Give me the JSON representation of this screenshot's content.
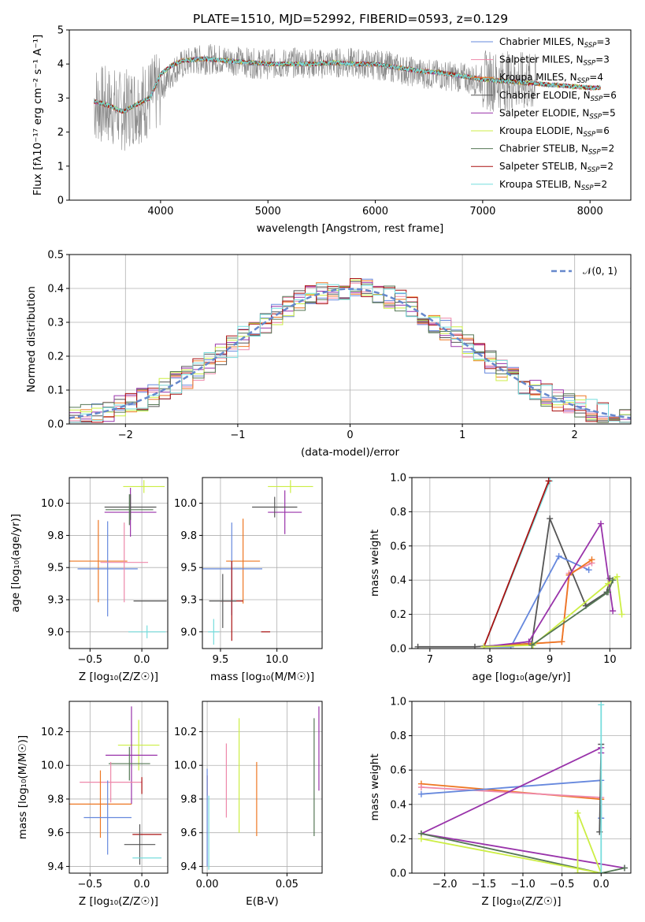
{
  "title": "PLATE=1510, MJD=52992, FIBERID=0593, z=0.129",
  "colors": {
    "Chabrier MILES": "#6688dd",
    "Salpeter MILES": "#ee88aa",
    "Kroupa MILES": "#ee7722",
    "Chabrier ELODIE": "#555555",
    "Salpeter ELODIE": "#9933aa",
    "Kroupa ELODIE": "#ccee44",
    "Chabrier STELIB": "#557755",
    "Salpeter STELIB": "#aa1111",
    "Kroupa STELIB": "#77dddd"
  },
  "chart_data": [
    {
      "id": "spectrum",
      "type": "line",
      "xlabel": "wavelength [Angstrom, rest frame]",
      "ylabel": "Flux [fλ10⁻¹⁷ erg cm⁻² s⁻¹ A⁻¹]",
      "xlim": [
        3150,
        8380
      ],
      "ylim": [
        0,
        5
      ],
      "xticks": [
        4000,
        5000,
        6000,
        7000,
        8000
      ],
      "yticks": [
        0,
        1,
        2,
        3,
        4,
        5
      ],
      "grid": false,
      "legend_position": "right",
      "data_color": "#888888",
      "data_x": [
        3380,
        3450,
        3550,
        3650,
        3750,
        3850,
        3950,
        4050,
        4150,
        4300,
        4500,
        4700,
        4900,
        5100,
        5300,
        5500,
        5700,
        5900,
        6100,
        6300,
        6500,
        6700,
        6900,
        7100,
        7300,
        7400,
        7500
      ],
      "data_y": [
        2.85,
        2.8,
        2.75,
        2.6,
        2.8,
        2.9,
        3.1,
        3.5,
        3.9,
        4.1,
        4.15,
        4.1,
        4.0,
        4.0,
        4.05,
        4.0,
        4.05,
        4.0,
        3.95,
        3.8,
        3.7,
        3.65,
        3.55,
        3.5,
        3.5,
        3.45,
        3.4
      ],
      "model_x": [
        3380,
        3500,
        3650,
        3800,
        3900,
        4000,
        4100,
        4200,
        4400,
        4600,
        4800,
        5000,
        5200,
        5400,
        5600,
        5800,
        6000,
        6200,
        6400,
        6600,
        6800,
        7000,
        7200,
        7400,
        7600,
        7800,
        8000,
        8100
      ],
      "model_y": [
        2.9,
        2.8,
        2.6,
        2.85,
        3.0,
        3.7,
        3.95,
        4.1,
        4.15,
        4.1,
        4.05,
        4.0,
        4.0,
        4.0,
        4.05,
        4.0,
        4.0,
        3.9,
        3.8,
        3.75,
        3.65,
        3.55,
        3.5,
        3.45,
        3.4,
        3.35,
        3.3,
        3.3
      ],
      "legend": [
        {
          "model": "Chabrier MILES",
          "label": "Chabrier MILES, N",
          "n": "3"
        },
        {
          "model": "Salpeter MILES",
          "label": "Salpeter MILES, N",
          "n": "3"
        },
        {
          "model": "Kroupa MILES",
          "label": "Kroupa MILES, N",
          "n": "4"
        },
        {
          "model": "Chabrier ELODIE",
          "label": "Chabrier ELODIE, N",
          "n": "6"
        },
        {
          "model": "Salpeter ELODIE",
          "label": "Salpeter ELODIE, N",
          "n": "5"
        },
        {
          "model": "Kroupa ELODIE",
          "label": "Kroupa ELODIE, N",
          "n": "6"
        },
        {
          "model": "Chabrier STELIB",
          "label": "Chabrier STELIB, N",
          "n": "2"
        },
        {
          "model": "Salpeter STELIB",
          "label": "Salpeter STELIB, N",
          "n": "2"
        },
        {
          "model": "Kroupa STELIB",
          "label": "Kroupa STELIB, N",
          "n": "2"
        }
      ],
      "legend_subscript": "SSP"
    },
    {
      "id": "residuals",
      "type": "line",
      "xlabel": "(data-model)/error",
      "ylabel": "Normed distribution",
      "xlim": [
        -2.5,
        2.5
      ],
      "ylim": [
        0,
        0.5
      ],
      "xticks": [
        -2,
        -1,
        0,
        1,
        2
      ],
      "yticks": [
        0.0,
        0.1,
        0.2,
        0.3,
        0.4,
        0.5
      ],
      "grid": true,
      "legend_position": "top-right",
      "legend": "𝒩(0, 1)",
      "gauss_color": "#6688cc",
      "hist_bin_width": 0.1,
      "hist_model_order": [
        "Chabrier MILES",
        "Salpeter MILES",
        "Kroupa MILES",
        "Chabrier ELODIE",
        "Salpeter ELODIE",
        "Kroupa ELODIE",
        "Chabrier STELIB",
        "Salpeter STELIB",
        "Kroupa STELIB"
      ]
    },
    {
      "id": "age-vs-Z",
      "type": "scatter",
      "xlabel": "Z [log₁₀(Z/Z☉)]",
      "ylabel": "age  [log₁₀(age/yr)]",
      "xlim": [
        -0.7,
        0.25
      ],
      "ylim": [
        8.87,
        10.2
      ],
      "xticks": [
        -0.5,
        0.0
      ],
      "yticks": [
        9.0,
        9.25,
        9.5,
        9.75,
        10.0
      ],
      "grid": true,
      "points": [
        {
          "model": "Kroupa MILES",
          "x": -0.42,
          "y": 9.55,
          "xerr": 0.28,
          "yerr": 0.32
        },
        {
          "model": "Chabrier MILES",
          "x": -0.33,
          "y": 9.49,
          "xerr": 0.29,
          "yerr": 0.37
        },
        {
          "model": "Salpeter MILES",
          "x": -0.17,
          "y": 9.54,
          "xerr": 0.23,
          "yerr": 0.31
        },
        {
          "model": "Salpeter ELODIE",
          "x": -0.11,
          "y": 9.93,
          "xerr": 0.25,
          "yerr": 0.19
        },
        {
          "model": "Chabrier ELODIE",
          "x": -0.11,
          "y": 9.97,
          "xerr": 0.25,
          "yerr": 0.1
        },
        {
          "model": "Chabrier STELIB",
          "x": -0.12,
          "y": 9.95,
          "xerr": 0.23,
          "yerr": 0.12
        },
        {
          "model": "Kroupa ELODIE",
          "x": 0.02,
          "y": 10.13,
          "xerr": 0.2,
          "yerr": 0.05
        },
        {
          "model": "Chabrier ELODIE",
          "x": 0.08,
          "y": 9.24,
          "xerr": 0.16,
          "yerr": 0.0
        },
        {
          "model": "Kroupa STELIB",
          "x": 0.05,
          "y": 9.0,
          "xerr": 0.18,
          "yerr": 0.05
        }
      ]
    },
    {
      "id": "age-vs-mass",
      "type": "scatter",
      "xlabel": "mass [log₁₀(M/M☉)]",
      "ylabel": "",
      "xlim": [
        9.34,
        10.4
      ],
      "ylim": [
        8.87,
        10.2
      ],
      "xticks": [
        9.5,
        10.0
      ],
      "yticks": [
        9.0,
        9.25,
        9.5,
        9.75,
        10.0
      ],
      "grid": true,
      "points": [
        {
          "model": "Kroupa ELODIE",
          "x": 10.12,
          "y": 10.13,
          "xerr": 0.2,
          "yerr": 0.05
        },
        {
          "model": "Salpeter ELODIE",
          "x": 10.07,
          "y": 9.93,
          "xerr": 0.15,
          "yerr": 0.17
        },
        {
          "model": "Chabrier ELODIE",
          "x": 9.98,
          "y": 9.97,
          "xerr": 0.2,
          "yerr": 0.08
        },
        {
          "model": "Kroupa MILES",
          "x": 9.7,
          "y": 9.55,
          "xerr": 0.15,
          "yerr": 0.33
        },
        {
          "model": "Chabrier MILES",
          "x": 9.6,
          "y": 9.49,
          "xerr": 0.27,
          "yerr": 0.36
        },
        {
          "model": "Salpeter STELIB",
          "x": 9.6,
          "y": 9.24,
          "xerr": 0.1,
          "yerr": 0.31
        },
        {
          "model": "Chabrier ELODIE",
          "x": 9.52,
          "y": 9.24,
          "xerr": 0.12,
          "yerr": 0.21
        },
        {
          "model": "Kroupa STELIB",
          "x": 9.44,
          "y": 9.0,
          "xerr": 0.05,
          "yerr": 0.1
        },
        {
          "model": "Salpeter STELIB",
          "x": 9.9,
          "y": 9.0,
          "xerr": 0.04,
          "yerr": 0.0
        }
      ]
    },
    {
      "id": "massweight-vs-age",
      "type": "line",
      "xlabel": "age  [log₁₀(age/yr)]",
      "ylabel": "mass weight",
      "xlim": [
        6.7,
        10.35
      ],
      "ylim": [
        0,
        1
      ],
      "xticks": [
        7,
        8,
        9,
        10
      ],
      "yticks": [
        0.0,
        0.2,
        0.4,
        0.6,
        0.8,
        1.0
      ],
      "grid": true,
      "series": [
        {
          "model": "Kroupa STELIB",
          "x": [
            7.9,
            9.0
          ],
          "y": [
            0.01,
            0.98
          ]
        },
        {
          "model": "Salpeter STELIB",
          "x": [
            7.9,
            8.98
          ],
          "y": [
            0.01,
            0.98
          ]
        },
        {
          "model": "Chabrier ELODIE",
          "x": [
            6.8,
            7.75,
            8.7,
            9.0,
            9.6,
            9.95,
            10.0
          ],
          "y": [
            0.01,
            0.01,
            0.03,
            0.76,
            0.25,
            0.33,
            0.41
          ]
        },
        {
          "model": "Chabrier MILES",
          "x": [
            7.9,
            8.35,
            9.15,
            9.65
          ],
          "y": [
            0.01,
            0.01,
            0.54,
            0.46
          ]
        },
        {
          "model": "Salpeter MILES",
          "x": [
            7.9,
            9.2,
            9.32,
            9.7
          ],
          "y": [
            0.01,
            0.04,
            0.44,
            0.5
          ]
        },
        {
          "model": "Kroupa MILES",
          "x": [
            7.9,
            9.2,
            9.32,
            9.7
          ],
          "y": [
            0.01,
            0.04,
            0.43,
            0.52
          ]
        },
        {
          "model": "Salpeter ELODIE",
          "x": [
            7.9,
            8.65,
            9.85,
            10.05
          ],
          "y": [
            0.01,
            0.04,
            0.73,
            0.22
          ]
        },
        {
          "model": "Kroupa ELODIE",
          "x": [
            7.9,
            8.72,
            9.97,
            10.12,
            10.2
          ],
          "y": [
            0.01,
            0.02,
            0.38,
            0.42,
            0.2
          ]
        },
        {
          "model": "Chabrier STELIB",
          "x": [
            8.7,
            9.97,
            10.05
          ],
          "y": [
            0.02,
            0.33,
            0.4
          ]
        }
      ]
    },
    {
      "id": "mass-vs-Z",
      "type": "scatter",
      "xlabel": "Z [log₁₀(Z/Z☉)]",
      "ylabel": "mass [log₁₀(M/M☉)]",
      "xlim": [
        -0.7,
        0.25
      ],
      "ylim": [
        9.36,
        10.38
      ],
      "xticks": [
        -0.5,
        0.0
      ],
      "yticks": [
        9.4,
        9.6,
        9.8,
        10.0,
        10.2
      ],
      "grid": true,
      "points": [
        {
          "model": "Kroupa ELODIE",
          "x": -0.03,
          "y": 10.12,
          "xerr": 0.2,
          "yerr": 0.15
        },
        {
          "model": "Salpeter ELODIE",
          "x": -0.1,
          "y": 10.06,
          "xerr": 0.25,
          "yerr": 0.29
        },
        {
          "model": "Chabrier STELIB",
          "x": -0.12,
          "y": 10.01,
          "xerr": 0.2,
          "yerr": 0.1
        },
        {
          "model": "Salpeter MILES",
          "x": -0.3,
          "y": 9.9,
          "xerr": 0.3,
          "yerr": 0.12
        },
        {
          "model": "Kroupa MILES",
          "x": -0.4,
          "y": 9.77,
          "xerr": 0.3,
          "yerr": 0.2
        },
        {
          "model": "Chabrier MILES",
          "x": -0.33,
          "y": 9.69,
          "xerr": 0.23,
          "yerr": 0.22
        },
        {
          "model": "Salpeter STELIB",
          "x": 0.05,
          "y": 9.59,
          "xerr": 0.14,
          "yerr": 0.0
        },
        {
          "model": "Chabrier ELODIE",
          "x": -0.02,
          "y": 9.53,
          "xerr": 0.15,
          "yerr": 0.12
        },
        {
          "model": "Kroupa STELIB",
          "x": 0.05,
          "y": 9.45,
          "xerr": 0.14,
          "yerr": 0.0
        },
        {
          "model": "Salpeter STELIB",
          "x": 0.0,
          "y": 9.88,
          "xerr": 0.0,
          "yerr": 0.05
        }
      ]
    },
    {
      "id": "mass-vs-EBV",
      "type": "scatter",
      "xlabel": "E(B-V)",
      "ylabel": "",
      "xlim": [
        -0.003,
        0.072
      ],
      "ylim": [
        9.36,
        10.38
      ],
      "xticks": [
        0.0,
        0.05
      ],
      "yticks": [
        9.4,
        9.6,
        9.8,
        10.0,
        10.2
      ],
      "grid": true,
      "points": [
        {
          "model": "Salpeter STELIB",
          "x": 0.0,
          "y": 9.88,
          "yerr": 0.06
        },
        {
          "model": "Chabrier MILES",
          "x": 0.0,
          "y": 9.69,
          "yerr": 0.29
        },
        {
          "model": "Kroupa STELIB",
          "x": 0.001,
          "y": 9.6,
          "yerr": 0.22
        },
        {
          "model": "Salpeter MILES",
          "x": 0.012,
          "y": 9.91,
          "yerr": 0.22
        },
        {
          "model": "Kroupa ELODIE",
          "x": 0.02,
          "y": 9.94,
          "yerr": 0.34
        },
        {
          "model": "Kroupa MILES",
          "x": 0.031,
          "y": 9.8,
          "yerr": 0.22
        },
        {
          "model": "Chabrier STELIB",
          "x": 0.067,
          "y": 9.93,
          "yerr": 0.35
        },
        {
          "model": "Salpeter ELODIE",
          "x": 0.07,
          "y": 10.1,
          "yerr": 0.25
        }
      ]
    },
    {
      "id": "massweight-vs-Z",
      "type": "line",
      "xlabel": "Z [log₁₀(Z/Z☉)]",
      "ylabel": "mass weight",
      "xlim": [
        -2.42,
        0.38
      ],
      "ylim": [
        0,
        1
      ],
      "xticks": [
        -2.0,
        -1.5,
        -1.0,
        -0.5,
        0.0
      ],
      "yticks": [
        0.0,
        0.2,
        0.4,
        0.6,
        0.8,
        1.0
      ],
      "grid": true,
      "series": [
        {
          "model": "Kroupa MILES",
          "x": [
            -2.3,
            0.0
          ],
          "y": [
            0.52,
            0.43
          ]
        },
        {
          "model": "Salpeter MILES",
          "x": [
            -2.3,
            0.0
          ],
          "y": [
            0.5,
            0.44
          ]
        },
        {
          "model": "Chabrier MILES",
          "x": [
            -2.3,
            0.0,
            0.0
          ],
          "y": [
            0.46,
            0.54,
            0.32
          ]
        },
        {
          "model": "Salpeter ELODIE",
          "x": [
            0.3,
            -2.3,
            0.0,
            0.0
          ],
          "y": [
            0.03,
            0.23,
            0.73,
            0.7
          ]
        },
        {
          "model": "Chabrier STELIB",
          "x": [
            -2.3,
            0.0,
            0.3
          ],
          "y": [
            0.23,
            0.0,
            0.03
          ]
        },
        {
          "model": "Kroupa ELODIE",
          "x": [
            -2.3,
            0.0,
            -0.3,
            -0.3,
            0.0
          ],
          "y": [
            0.2,
            0.0,
            0.35,
            0.0,
            0.0
          ]
        },
        {
          "model": "Chabrier ELODIE",
          "x": [
            -0.02,
            0.0
          ],
          "y": [
            0.24,
            0.75
          ]
        },
        {
          "model": "Kroupa STELIB",
          "x": [
            0.0,
            0.0
          ],
          "y": [
            0.0,
            0.98
          ]
        }
      ]
    }
  ]
}
